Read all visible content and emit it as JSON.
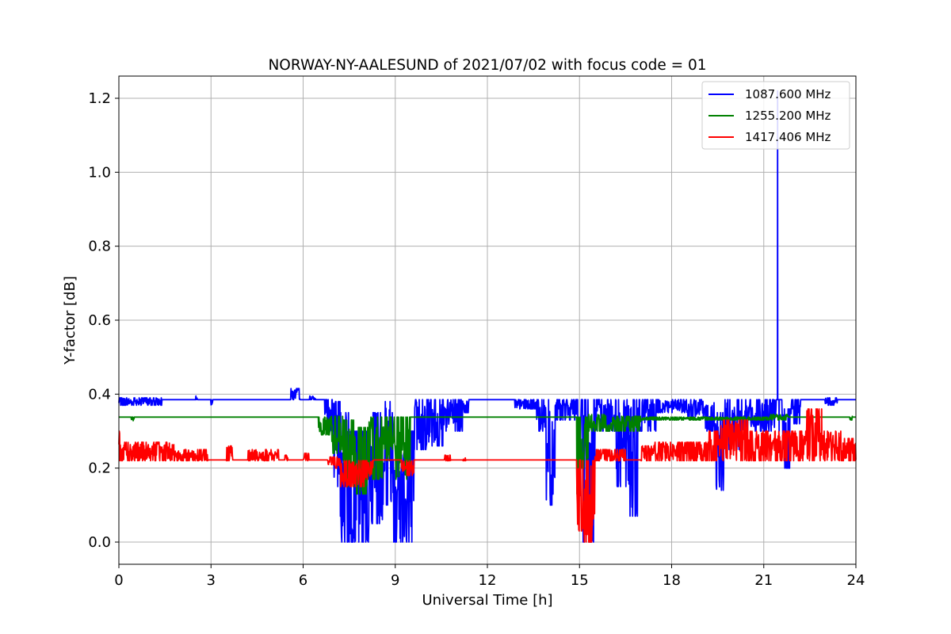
{
  "chart_data": {
    "type": "line",
    "title": "NORWAY-NY-AALESUND of 2021/07/02 with focus code = 01",
    "xlabel": "Universal Time [h]",
    "ylabel": "Y-factor [dB]",
    "xlim": [
      0,
      24
    ],
    "ylim": [
      -0.06,
      1.26
    ],
    "xticks": [
      0,
      3,
      6,
      9,
      12,
      15,
      18,
      21,
      24
    ],
    "xtick_labels": [
      "0",
      "3",
      "6",
      "9",
      "12",
      "15",
      "18",
      "21",
      "24"
    ],
    "yticks": [
      0.0,
      0.2,
      0.4,
      0.6,
      0.8,
      1.0,
      1.2
    ],
    "ytick_labels": [
      "0.0",
      "0.2",
      "0.4",
      "0.6",
      "0.8",
      "1.0",
      "1.2"
    ],
    "grid": true,
    "legend_position": "top-right",
    "series": [
      {
        "name": "1087.600 MHz",
        "color": "#0000ff",
        "baseline": 0.385,
        "segments": [
          [
            0.0,
            0.2,
            0.37,
            0.39
          ],
          [
            0.2,
            1.4,
            0.37,
            0.39
          ],
          [
            2.5,
            2.6,
            0.385,
            0.395
          ],
          [
            3.0,
            3.05,
            0.37,
            0.385
          ],
          [
            5.6,
            5.9,
            0.385,
            0.415
          ],
          [
            6.2,
            6.4,
            0.385,
            0.395
          ],
          [
            6.7,
            7.0,
            0.3,
            0.385
          ],
          [
            7.0,
            7.2,
            0.15,
            0.38
          ],
          [
            7.2,
            7.6,
            0.0,
            0.35
          ],
          [
            7.6,
            8.2,
            0.0,
            0.3
          ],
          [
            8.2,
            8.6,
            0.05,
            0.35
          ],
          [
            8.6,
            8.9,
            0.1,
            0.38
          ],
          [
            8.9,
            9.1,
            0.0,
            0.35
          ],
          [
            9.1,
            9.6,
            0.0,
            0.3
          ],
          [
            9.6,
            10.0,
            0.25,
            0.385
          ],
          [
            10.0,
            10.6,
            0.26,
            0.385
          ],
          [
            10.6,
            11.2,
            0.3,
            0.385
          ],
          [
            11.2,
            11.4,
            0.35,
            0.385
          ],
          [
            12.9,
            13.6,
            0.36,
            0.385
          ],
          [
            13.6,
            13.9,
            0.3,
            0.385
          ],
          [
            13.9,
            14.2,
            0.1,
            0.385
          ],
          [
            14.2,
            14.9,
            0.33,
            0.385
          ],
          [
            14.95,
            15.05,
            0.15,
            0.34
          ],
          [
            15.1,
            15.5,
            0.0,
            0.385
          ],
          [
            15.5,
            16.2,
            0.3,
            0.385
          ],
          [
            16.2,
            16.6,
            0.15,
            0.385
          ],
          [
            16.6,
            16.9,
            0.07,
            0.385
          ],
          [
            16.9,
            17.5,
            0.3,
            0.385
          ],
          [
            17.5,
            18.5,
            0.35,
            0.385
          ],
          [
            18.5,
            19.0,
            0.34,
            0.385
          ],
          [
            19.0,
            19.4,
            0.3,
            0.385
          ],
          [
            19.4,
            19.7,
            0.14,
            0.35
          ],
          [
            19.7,
            20.2,
            0.25,
            0.385
          ],
          [
            20.2,
            21.0,
            0.3,
            0.385
          ],
          [
            21.0,
            21.4,
            0.3,
            0.385
          ],
          [
            21.6,
            21.9,
            0.2,
            0.36
          ],
          [
            21.9,
            22.2,
            0.32,
            0.385
          ],
          [
            23.0,
            23.4,
            0.37,
            0.39
          ]
        ],
        "spikes": [
          [
            21.45,
            1.22
          ],
          [
            21.5,
            0.3
          ]
        ]
      },
      {
        "name": "1255.200 MHz",
        "color": "#008000",
        "baseline": 0.338,
        "segments": [
          [
            0.4,
            0.5,
            0.328,
            0.338
          ],
          [
            6.5,
            6.9,
            0.29,
            0.338
          ],
          [
            6.9,
            7.3,
            0.24,
            0.34
          ],
          [
            7.3,
            7.7,
            0.15,
            0.33
          ],
          [
            7.7,
            8.1,
            0.13,
            0.31
          ],
          [
            8.1,
            8.6,
            0.17,
            0.338
          ],
          [
            8.6,
            9.0,
            0.22,
            0.338
          ],
          [
            9.0,
            9.5,
            0.17,
            0.338
          ],
          [
            14.9,
            15.0,
            0.13,
            0.338
          ],
          [
            15.0,
            15.3,
            0.2,
            0.338
          ],
          [
            15.3,
            16.0,
            0.3,
            0.345
          ],
          [
            16.0,
            17.0,
            0.3,
            0.34
          ],
          [
            17.0,
            21.2,
            0.33,
            0.338
          ],
          [
            21.2,
            21.8,
            0.33,
            0.345
          ],
          [
            23.8,
            23.9,
            0.33,
            0.34
          ]
        ],
        "spikes": []
      },
      {
        "name": "1417.406 MHz",
        "color": "#ff0000",
        "baseline": 0.222,
        "segments": [
          [
            0.0,
            0.05,
            0.22,
            0.3
          ],
          [
            0.05,
            1.8,
            0.22,
            0.27
          ],
          [
            1.8,
            2.9,
            0.22,
            0.25
          ],
          [
            3.5,
            3.7,
            0.22,
            0.26
          ],
          [
            4.2,
            5.2,
            0.22,
            0.25
          ],
          [
            5.4,
            5.5,
            0.22,
            0.235
          ],
          [
            6.0,
            6.2,
            0.22,
            0.24
          ],
          [
            6.8,
            7.2,
            0.2,
            0.23
          ],
          [
            7.2,
            8.0,
            0.15,
            0.22
          ],
          [
            8.0,
            8.3,
            0.17,
            0.22
          ],
          [
            9.2,
            9.6,
            0.18,
            0.22
          ],
          [
            10.6,
            10.8,
            0.22,
            0.235
          ],
          [
            11.2,
            11.3,
            0.22,
            0.23
          ],
          [
            14.9,
            15.1,
            0.03,
            0.222
          ],
          [
            15.1,
            15.5,
            0.0,
            0.22
          ],
          [
            15.5,
            16.5,
            0.22,
            0.25
          ],
          [
            17.0,
            17.4,
            0.22,
            0.26
          ],
          [
            17.4,
            18.5,
            0.22,
            0.27
          ],
          [
            18.5,
            19.2,
            0.22,
            0.27
          ],
          [
            19.2,
            19.6,
            0.22,
            0.3
          ],
          [
            19.6,
            20.5,
            0.22,
            0.33
          ],
          [
            20.5,
            21.3,
            0.22,
            0.3
          ],
          [
            21.3,
            22.4,
            0.22,
            0.3
          ],
          [
            22.4,
            22.9,
            0.22,
            0.36
          ],
          [
            22.9,
            23.6,
            0.22,
            0.3
          ],
          [
            23.6,
            24.0,
            0.22,
            0.28
          ]
        ],
        "spikes": []
      }
    ]
  }
}
